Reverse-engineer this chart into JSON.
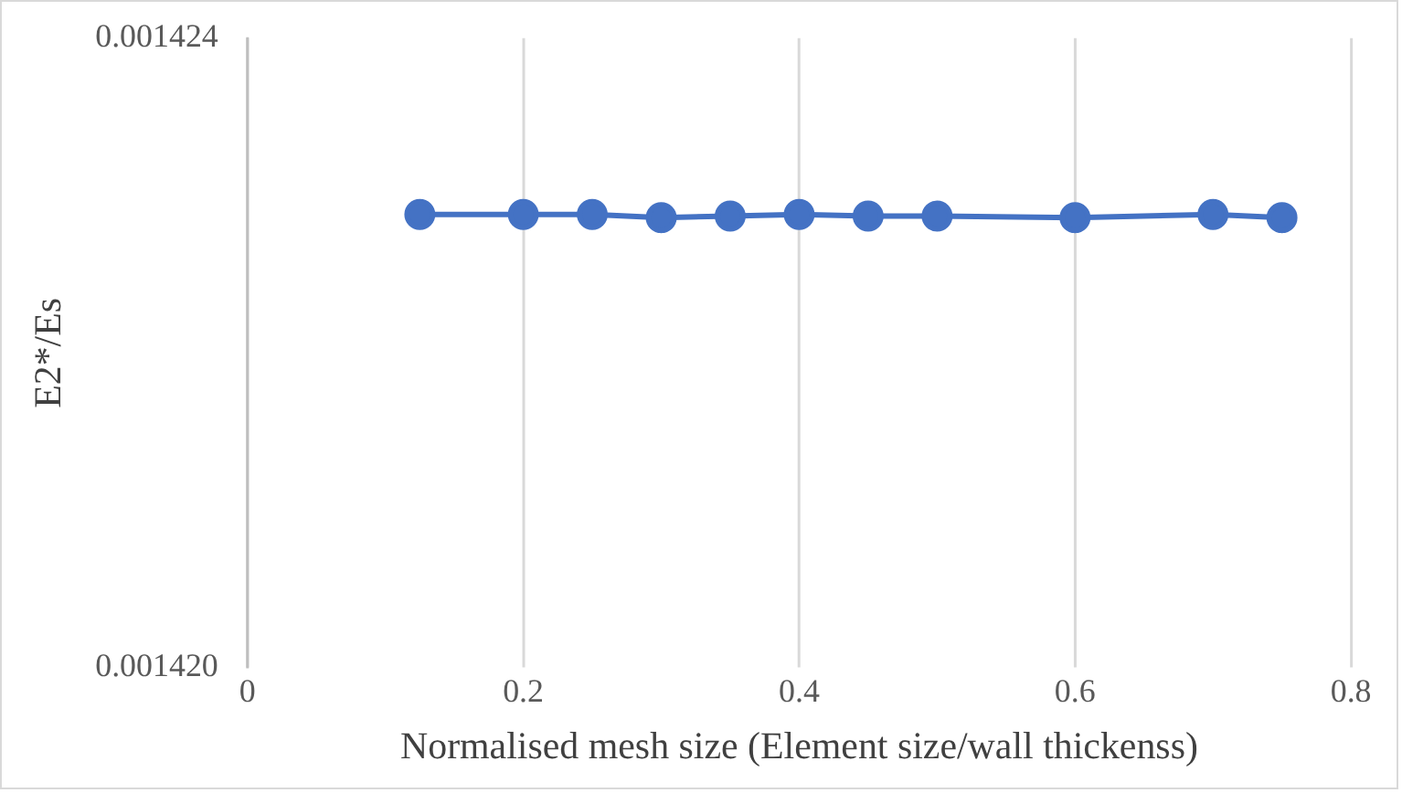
{
  "chart_data": {
    "type": "line",
    "xlabel": "Normalised mesh size (Element size/wall thickenss)",
    "ylabel": "E2*/Es",
    "x": [
      0.125,
      0.2,
      0.25,
      0.3,
      0.35,
      0.4,
      0.45,
      0.5,
      0.6,
      0.7,
      0.75
    ],
    "series": [
      {
        "color": "#4472c4",
        "values": [
          0.00142288,
          0.00142288,
          0.00142288,
          0.00142286,
          0.00142287,
          0.00142288,
          0.00142287,
          0.00142287,
          0.00142286,
          0.00142288,
          0.00142286
        ]
      }
    ],
    "xlim": [
      0,
      0.8
    ],
    "xticks": [
      0,
      0.2,
      0.4,
      0.6,
      0.8
    ],
    "ylim": [
      0.00142,
      0.001424
    ],
    "yticks": [
      {
        "value": 0.00142,
        "label": "0.001420"
      },
      {
        "value": 0.001424,
        "label": "0.001424"
      }
    ],
    "grid": "x",
    "legend": false,
    "marker": "circle",
    "line_style": "solid"
  }
}
